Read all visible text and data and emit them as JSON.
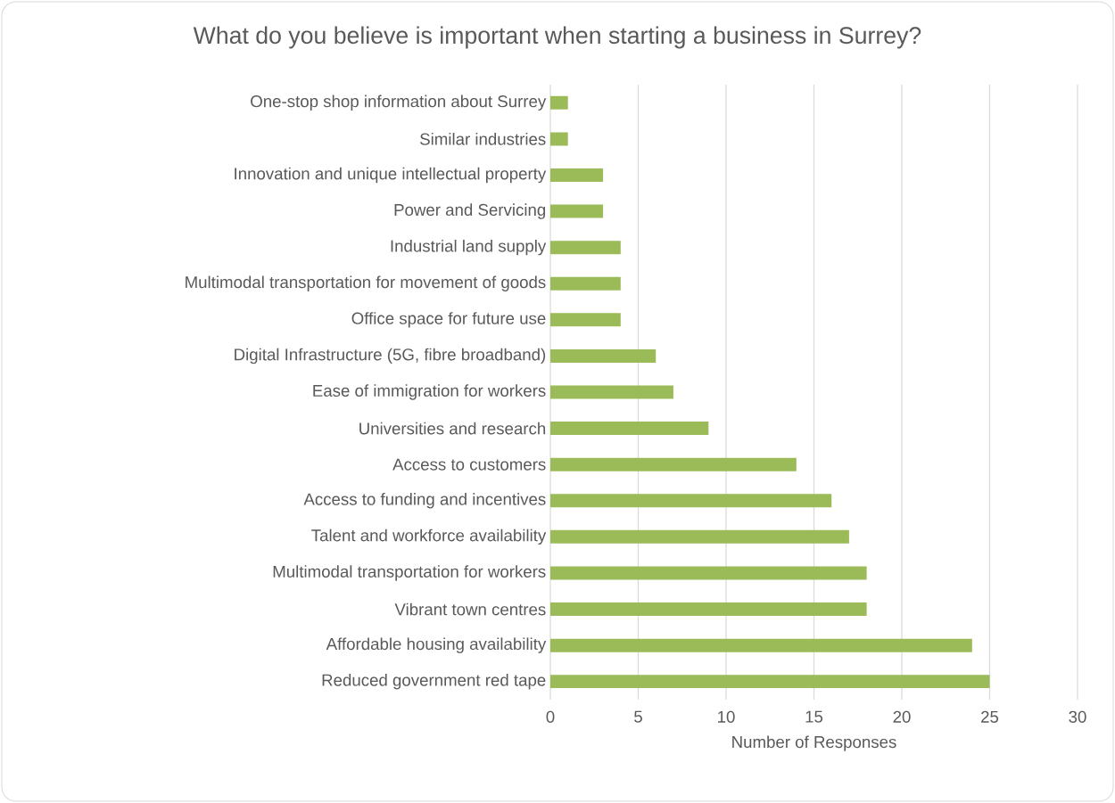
{
  "chart_data": {
    "type": "bar",
    "orientation": "horizontal",
    "title": "What do you believe is important when starting a business in Surrey?",
    "xlabel": "Number of Responses",
    "categories": [
      "One-stop shop information about Surrey",
      "Similar industries",
      "Innovation and unique intellectual property",
      "Power and Servicing",
      "Industrial land supply",
      "Multimodal transportation for movement of goods",
      "Office space for future use",
      "Digital Infrastructure (5G, fibre broadband)",
      "Ease of immigration for workers",
      "Universities and research",
      "Access to customers",
      "Access to funding and incentives",
      "Talent and workforce availability",
      "Multimodal transportation for workers",
      "Vibrant town centres",
      "Affordable housing availability",
      "Reduced government red tape"
    ],
    "values": [
      1,
      1,
      3,
      3,
      4,
      4,
      4,
      6,
      7,
      9,
      14,
      16,
      17,
      18,
      18,
      24,
      25
    ],
    "color": "#9bbb59",
    "xlim": [
      0,
      30
    ],
    "xticks": [
      0,
      5,
      10,
      15,
      20,
      25,
      30
    ],
    "grid": "x"
  }
}
